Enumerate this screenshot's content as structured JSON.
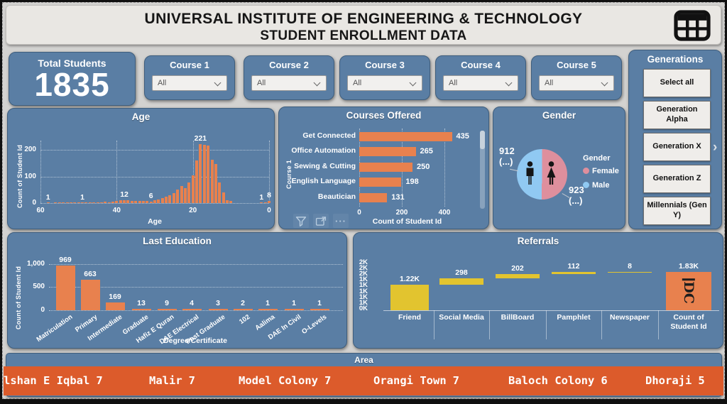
{
  "header": {
    "title_line1": "UNIVERSAL INSTITUTE OF ENGINEERING & TECHNOLOGY",
    "title_line2": "STUDENT ENROLLMENT DATA"
  },
  "filters": {
    "total_students": {
      "label": "Total Students",
      "value": "1835"
    },
    "courses": [
      {
        "label": "Course 1",
        "value": "All"
      },
      {
        "label": "Course 2",
        "value": "All"
      },
      {
        "label": "Course 3",
        "value": "All"
      },
      {
        "label": "Course 4",
        "value": "All"
      },
      {
        "label": "Course 5",
        "value": "All"
      }
    ],
    "generations": {
      "title": "Generations",
      "items": [
        "Select all",
        "Generation Alpha",
        "Generation X",
        "Generation Z",
        "Millennials (Gen Y)"
      ]
    }
  },
  "chart_data": [
    {
      "id": "age",
      "type": "bar",
      "title": "Age",
      "xlabel": "Age",
      "ylabel": "Count of Student Id",
      "x_ticks": [
        60,
        40,
        20,
        0
      ],
      "y_ticks": [
        0,
        100,
        200
      ],
      "x_axis_reversed": true,
      "ylim": [
        0,
        240
      ],
      "grid": "dotted",
      "points": [
        [
          58,
          1
        ],
        [
          56,
          2
        ],
        [
          55,
          2
        ],
        [
          54,
          2
        ],
        [
          53,
          1
        ],
        [
          52,
          2
        ],
        [
          51,
          1
        ],
        [
          50,
          2
        ],
        [
          49,
          1
        ],
        [
          48,
          2
        ],
        [
          47,
          2
        ],
        [
          46,
          3
        ],
        [
          45,
          4
        ],
        [
          44,
          3
        ],
        [
          43,
          5
        ],
        [
          42,
          4
        ],
        [
          41,
          6
        ],
        [
          40,
          9
        ],
        [
          39,
          10
        ],
        [
          38,
          12
        ],
        [
          37,
          10
        ],
        [
          36,
          7
        ],
        [
          35,
          8
        ],
        [
          34,
          8
        ],
        [
          33,
          7
        ],
        [
          32,
          8
        ],
        [
          31,
          6
        ],
        [
          30,
          10
        ],
        [
          29,
          14
        ],
        [
          28,
          20
        ],
        [
          27,
          24
        ],
        [
          26,
          30
        ],
        [
          25,
          38
        ],
        [
          24,
          50
        ],
        [
          23,
          65
        ],
        [
          22,
          55
        ],
        [
          21,
          78
        ],
        [
          20,
          105
        ],
        [
          19,
          160
        ],
        [
          18,
          221
        ],
        [
          17,
          218
        ],
        [
          16,
          215
        ],
        [
          15,
          163
        ],
        [
          14,
          148
        ],
        [
          13,
          78
        ],
        [
          12,
          40
        ],
        [
          11,
          12
        ],
        [
          10,
          8
        ],
        [
          2,
          1
        ],
        [
          1,
          1
        ],
        [
          0,
          8
        ]
      ],
      "data_labels": [
        [
          58,
          "1"
        ],
        [
          49,
          "1"
        ],
        [
          38,
          "12"
        ],
        [
          31,
          "6"
        ],
        [
          18,
          "221"
        ],
        [
          2,
          "1"
        ],
        [
          0,
          "8"
        ]
      ],
      "bar_color": "#E8814E"
    },
    {
      "id": "courses_offered",
      "type": "bar",
      "orientation": "horizontal",
      "title": "Courses Offered",
      "group_axis_label": "Course 1",
      "xlabel": "Count of Student Id",
      "x_ticks": [
        0,
        200,
        400
      ],
      "xlim": [
        0,
        450
      ],
      "categories": [
        "Get Connected",
        "Office Automation",
        "Sewing & Cutting",
        "English Language",
        "Beautician"
      ],
      "values": [
        435,
        265,
        250,
        198,
        131
      ],
      "bar_color": "#E8814E",
      "scrollbar": true
    },
    {
      "id": "gender",
      "type": "pie",
      "title": "Gender",
      "legend_title": "Gender",
      "legend_position": "right",
      "slices": [
        {
          "label": "Female",
          "value": 923,
          "display_value": "923",
          "display_suffix": "(...)",
          "color": "#DE8F9D"
        },
        {
          "label": "Male",
          "value": 912,
          "display_value": "912",
          "display_suffix": "(...)",
          "color": "#90C9F2"
        }
      ]
    },
    {
      "id": "last_education",
      "type": "bar",
      "title": "Last Education",
      "xlabel": "Degree/Certificate",
      "ylabel": "Count of Student Id",
      "y_tick_values": [
        0,
        500,
        1000
      ],
      "y_tick_labels": [
        "0",
        "500",
        "1,000"
      ],
      "ylim": [
        0,
        1050
      ],
      "grid": "dotted",
      "categories": [
        "Matriculation",
        "Primary",
        "Intermediate",
        "Graduate",
        "Hafiz E Quran",
        "DAE Electrical",
        "Post Graduate",
        "102",
        "Aalima",
        "DAE In Civil",
        "O-Levels"
      ],
      "values": [
        969,
        663,
        169,
        13,
        9,
        4,
        3,
        2,
        1,
        1,
        1
      ],
      "bar_color": "#E8814E"
    },
    {
      "id": "referrals",
      "type": "waterfall",
      "title": "Referrals",
      "categories": [
        "Friend",
        "Social Media",
        "BillBoard",
        "Pamphlet",
        "Newspaper",
        "Count of Student Id"
      ],
      "values": [
        1220,
        298,
        202,
        112,
        8
      ],
      "total": 1830,
      "bar_labels": [
        "1.22K",
        "298",
        "202",
        "112",
        "8",
        "1.83K"
      ],
      "y_ticks_top_to_bottom": [
        "2K",
        "2K",
        "2K",
        "1K",
        "1K",
        "1K",
        "1K",
        "1K",
        "0K"
      ],
      "ylim": [
        0,
        2200
      ],
      "increase_color": "#E2C42F",
      "total_color": "#E8814E"
    }
  ],
  "area": {
    "title": "Area",
    "items": [
      {
        "label": "lshan E Iqbal",
        "count": "7"
      },
      {
        "label": "Malir",
        "count": "7"
      },
      {
        "label": "Model Colony",
        "count": "7"
      },
      {
        "label": "Orangi Town",
        "count": "7"
      },
      {
        "label": "Baloch Colony",
        "count": "6"
      },
      {
        "label": "Dhoraji",
        "count": "5"
      }
    ]
  },
  "icons": {
    "header_logo": "table-grid-icon",
    "dropdown": "chevron-down-icon",
    "generations_nav_glyph": "›",
    "more_options_glyph": "···",
    "courses_toolbar": [
      "filter-funnel-icon",
      "focus-mode-icon",
      "more-options-icon"
    ],
    "gender_figures": [
      "male-icon",
      "female-icon"
    ],
    "referrals_total_icon": "rotated-id-glyph-icon"
  },
  "colors": {
    "card_blue": "#5A7EA4",
    "bar_orange": "#E8814E",
    "waterfall_yellow": "#E2C42F",
    "ticker_orange": "#DC5B2B",
    "female_pink": "#DE8F9D",
    "male_blue": "#90C9F2",
    "header_gray": "#E9E7E3",
    "button_gray": "#EFEDEA"
  }
}
